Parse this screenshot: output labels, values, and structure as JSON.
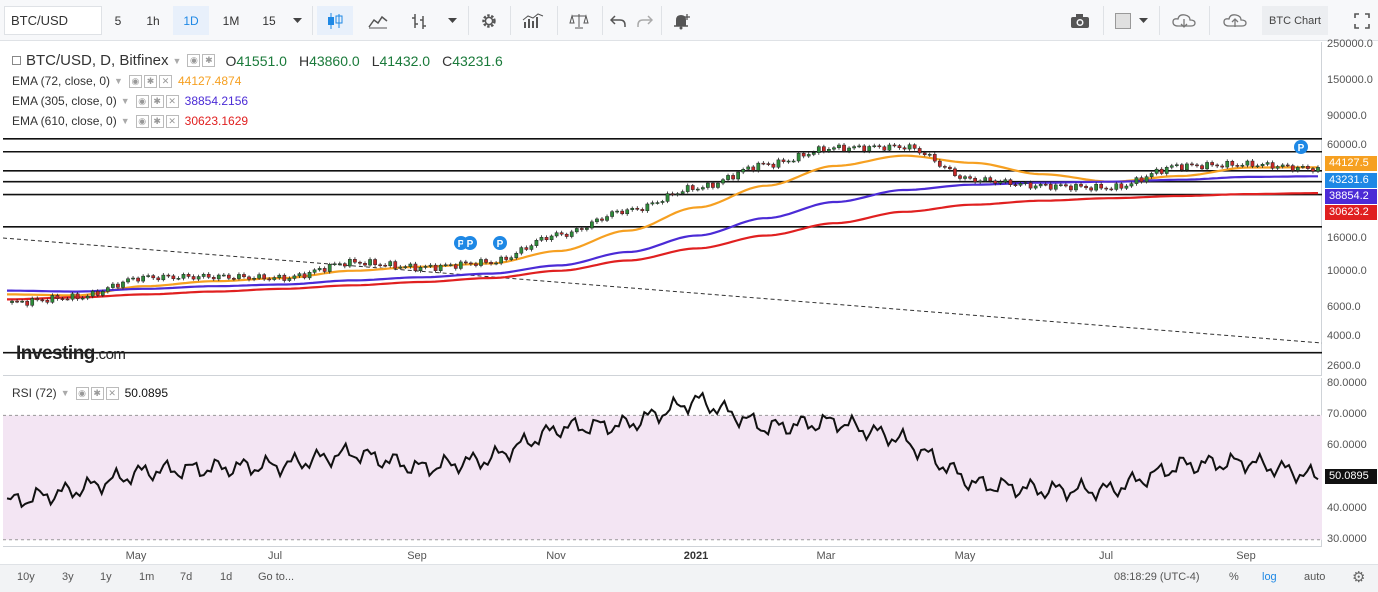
{
  "toolbar": {
    "symbol": "BTC/USD",
    "intervals": [
      "5",
      "1h",
      "1D",
      "1M",
      "15"
    ],
    "active_interval": "1D",
    "chart_label": "BTC Chart"
  },
  "legend": {
    "title": "BTC/USD, D, Bitfinex",
    "open_prefix": "O",
    "open": "41551.0",
    "high_prefix": "H",
    "high": "43860.0",
    "low_prefix": "L",
    "low": "41432.0",
    "close_prefix": "C",
    "close": "43231.6",
    "ema72_label": "EMA (72, close, 0)",
    "ema72_value": "44127.4874",
    "ema305_label": "EMA (305, close, 0)",
    "ema305_value": "38854.2156",
    "ema610_label": "EMA (610, close, 0)",
    "ema610_value": "30623.1629",
    "rsi_label": "RSI (72)",
    "rsi_value": "50.0895"
  },
  "watermark": {
    "brand": "Investing",
    "suffix": ".com"
  },
  "price_axis": {
    "labels": [
      "250000.0",
      "150000.0",
      "90000.0",
      "60000.0",
      "44127.5",
      "43231.6",
      "38854.2",
      "30623.2",
      "16000.0",
      "10000.0",
      "6000.0",
      "4000.0",
      "2600.0"
    ],
    "badges": [
      {
        "text": "44127.5",
        "color": "#f6a021"
      },
      {
        "text": "43231.6",
        "color": "#1e88e5"
      },
      {
        "text": "38854.2",
        "color": "#4b2bd6"
      },
      {
        "text": "30623.2",
        "color": "#e02020"
      }
    ]
  },
  "rsi_axis": {
    "labels": [
      "80.0000",
      "70.0000",
      "60.0000",
      "50.0895",
      "40.0000",
      "30.0000"
    ]
  },
  "time_axis": {
    "labels": [
      "May",
      "Jul",
      "Sep",
      "Nov",
      "2021",
      "Mar",
      "May",
      "Jul",
      "Sep"
    ]
  },
  "bottom_bar": {
    "ranges": [
      "10y",
      "3y",
      "1y",
      "1m",
      "7d",
      "1d",
      "Go to..."
    ],
    "clock": "08:18:29 (UTC-4)",
    "percent": "%",
    "log": "log",
    "auto": "auto"
  },
  "chart_data": {
    "type": "line",
    "scale": "log",
    "title": "BTC/USD, D, Bitfinex",
    "x": [
      "2020-03",
      "2020-04",
      "2020-05",
      "2020-06",
      "2020-07",
      "2020-08",
      "2020-09",
      "2020-10",
      "2020-11",
      "2020-12",
      "2021-01",
      "2021-02",
      "2021-03",
      "2021-04",
      "2021-05",
      "2021-06",
      "2021-07",
      "2021-08",
      "2021-09",
      "2021-10"
    ],
    "series": [
      {
        "name": "BTC/USD",
        "color": "#2e7d32",
        "values": [
          6500,
          7000,
          9300,
          9400,
          9200,
          11500,
          10700,
          11500,
          17000,
          24000,
          33000,
          46000,
          58000,
          59000,
          37000,
          34000,
          33000,
          45000,
          46000,
          43231.6
        ]
      },
      {
        "name": "EMA (72, close, 0)",
        "color": "#f6a021",
        "values": [
          7300,
          7200,
          8200,
          8800,
          9200,
          10200,
          10800,
          11300,
          13500,
          18000,
          25000,
          34000,
          45000,
          52000,
          47000,
          40000,
          36000,
          39000,
          44000,
          44127.4874
        ]
      },
      {
        "name": "EMA (305, close, 0)",
        "color": "#4b2bd6",
        "values": [
          7700,
          7600,
          7900,
          8200,
          8400,
          8900,
          9300,
          9800,
          11000,
          13300,
          16800,
          21500,
          27000,
          32000,
          34500,
          35500,
          36000,
          37000,
          38500,
          38854.2156
        ]
      },
      {
        "name": "EMA (610, close, 0)",
        "color": "#e02020",
        "values": [
          6800,
          7000,
          7300,
          7600,
          7900,
          8300,
          8700,
          9200,
          10200,
          11800,
          14000,
          16800,
          20000,
          23500,
          26000,
          27500,
          28500,
          29400,
          30200,
          30623.1629
        ]
      },
      {
        "name": "RSI (72)",
        "color": "#111111",
        "values": [
          42,
          46,
          52,
          53,
          54,
          58,
          53,
          56,
          66,
          67,
          75,
          66,
          68,
          62,
          48,
          46,
          46,
          54,
          55,
          50.0895
        ]
      }
    ],
    "ylim": [
      2300,
      260000
    ],
    "rsi_ylim": [
      28,
      82
    ],
    "rsi_band": [
      30,
      70
    ],
    "horizontal_levels": [
      66000,
      55000,
      42000,
      36000,
      30000,
      19000,
      3200
    ]
  }
}
